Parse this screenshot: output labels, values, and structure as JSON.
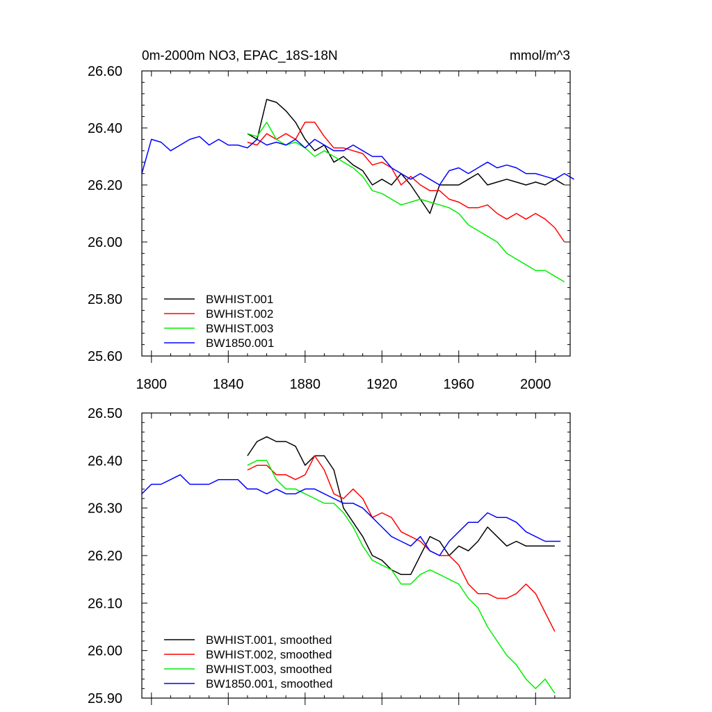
{
  "chart_data": [
    {
      "type": "line",
      "title": "0m-2000m NO3, EPAC_18S-18N",
      "units": "mmol/m^3",
      "xlim": [
        1795,
        2018
      ],
      "ylim": [
        25.6,
        26.6
      ],
      "xticks": [
        1800,
        1840,
        1880,
        1920,
        1960,
        2000
      ],
      "xtick_labels": [
        "1800",
        "1840",
        "1880",
        "1920",
        "1960",
        "2000"
      ],
      "yticks": [
        25.6,
        25.8,
        26.0,
        26.2,
        26.4,
        26.6
      ],
      "ytick_labels": [
        "25.60",
        "25.80",
        "26.00",
        "26.20",
        "26.40",
        "26.60"
      ],
      "legend_position": "lower-left",
      "series": [
        {
          "name": "BWHIST.001",
          "color": "#000000",
          "x_start": 1850,
          "x_step": 5,
          "values": [
            26.38,
            26.36,
            26.5,
            26.49,
            26.46,
            26.42,
            26.36,
            26.32,
            26.34,
            26.28,
            26.3,
            26.27,
            26.25,
            26.2,
            26.22,
            26.2,
            26.24,
            26.2,
            26.15,
            26.1,
            26.2,
            26.2,
            26.2,
            26.22,
            26.24,
            26.2,
            26.21,
            26.22,
            26.21,
            26.2,
            26.21,
            26.2,
            26.22,
            26.2
          ]
        },
        {
          "name": "BWHIST.002",
          "color": "#ff0000",
          "x_start": 1850,
          "x_step": 5,
          "values": [
            26.35,
            26.34,
            26.38,
            26.36,
            26.38,
            26.36,
            26.42,
            26.42,
            26.37,
            26.33,
            26.33,
            26.32,
            26.31,
            26.27,
            26.28,
            26.26,
            26.2,
            26.23,
            26.2,
            26.18,
            26.18,
            26.15,
            26.14,
            26.12,
            26.12,
            26.13,
            26.1,
            26.08,
            26.1,
            26.08,
            26.1,
            26.08,
            26.05,
            26.0
          ]
        },
        {
          "name": "BWHIST.003",
          "color": "#00ee00",
          "x_start": 1850,
          "x_step": 5,
          "values": [
            26.38,
            26.37,
            26.42,
            26.36,
            26.34,
            26.35,
            26.33,
            26.3,
            26.32,
            26.3,
            26.28,
            26.26,
            26.23,
            26.18,
            26.17,
            26.15,
            26.13,
            26.14,
            26.15,
            26.14,
            26.13,
            26.12,
            26.1,
            26.06,
            26.04,
            26.02,
            26.0,
            25.96,
            25.94,
            25.92,
            25.9,
            25.9,
            25.88,
            25.86
          ]
        },
        {
          "name": "BW1850.001",
          "color": "#0000ff",
          "x_start": 1795,
          "x_step": 5,
          "values": [
            26.24,
            26.36,
            26.35,
            26.32,
            26.34,
            26.36,
            26.37,
            26.34,
            26.36,
            26.34,
            26.34,
            26.33,
            26.36,
            26.34,
            26.35,
            26.34,
            26.36,
            26.33,
            26.36,
            26.34,
            26.32,
            26.32,
            26.34,
            26.32,
            26.3,
            26.3,
            26.26,
            26.24,
            26.22,
            26.24,
            26.22,
            26.2,
            26.25,
            26.26,
            26.24,
            26.26,
            26.28,
            26.26,
            26.27,
            26.26,
            26.24,
            26.24,
            26.23,
            26.22,
            26.24,
            26.22
          ]
        }
      ]
    },
    {
      "type": "line",
      "title": "",
      "xlim": [
        1795,
        2018
      ],
      "ylim": [
        25.9,
        26.5
      ],
      "xticks": [
        1800,
        1840,
        1880,
        1920,
        1960,
        2000
      ],
      "yticks": [
        25.9,
        26.0,
        26.1,
        26.2,
        26.3,
        26.4,
        26.5
      ],
      "ytick_labels": [
        "25.90",
        "26.00",
        "26.10",
        "26.20",
        "26.30",
        "26.40",
        "26.50"
      ],
      "legend_position": "lower-left",
      "series": [
        {
          "name": "BWHIST.001, smoothed",
          "color": "#000000",
          "x": [
            1850,
            1855,
            1860,
            1865,
            1870,
            1875,
            1880,
            1885,
            1890,
            1895,
            1900,
            1905,
            1910,
            1915,
            1920,
            1925,
            1930,
            1935,
            1940,
            1945,
            1950,
            1955,
            1960,
            1965,
            1970,
            1975,
            1980,
            1985,
            1990,
            1995,
            2000,
            2005,
            2010
          ],
          "values": [
            26.41,
            26.44,
            26.45,
            26.44,
            26.44,
            26.43,
            26.39,
            26.41,
            26.41,
            26.38,
            26.3,
            26.27,
            26.24,
            26.2,
            26.19,
            26.17,
            26.16,
            26.16,
            26.2,
            26.24,
            26.23,
            26.2,
            26.22,
            26.21,
            26.23,
            26.26,
            26.24,
            26.22,
            26.23,
            26.22,
            26.22,
            26.22,
            26.22
          ]
        },
        {
          "name": "BWHIST.002, smoothed",
          "color": "#ff0000",
          "x": [
            1850,
            1855,
            1860,
            1865,
            1870,
            1875,
            1880,
            1885,
            1890,
            1895,
            1900,
            1905,
            1910,
            1915,
            1920,
            1925,
            1930,
            1935,
            1940,
            1945,
            1950,
            1955,
            1960,
            1965,
            1970,
            1975,
            1980,
            1985,
            1990,
            1995,
            2000,
            2005,
            2010
          ],
          "values": [
            26.38,
            26.39,
            26.39,
            26.37,
            26.37,
            26.36,
            26.37,
            26.41,
            26.38,
            26.33,
            26.32,
            26.34,
            26.32,
            26.28,
            26.29,
            26.28,
            26.25,
            26.24,
            26.23,
            26.21,
            26.2,
            26.2,
            26.18,
            26.14,
            26.12,
            26.12,
            26.11,
            26.11,
            26.12,
            26.14,
            26.12,
            26.08,
            26.04
          ]
        },
        {
          "name": "BWHIST.003, smoothed",
          "color": "#00ee00",
          "x": [
            1850,
            1855,
            1860,
            1865,
            1870,
            1875,
            1880,
            1885,
            1890,
            1895,
            1900,
            1905,
            1910,
            1915,
            1920,
            1925,
            1930,
            1935,
            1940,
            1945,
            1950,
            1955,
            1960,
            1965,
            1970,
            1975,
            1980,
            1985,
            1990,
            1995,
            2000,
            2005,
            2010
          ],
          "values": [
            26.39,
            26.4,
            26.4,
            26.36,
            26.34,
            26.34,
            26.33,
            26.32,
            26.31,
            26.31,
            26.29,
            26.26,
            26.22,
            26.19,
            26.18,
            26.17,
            26.14,
            26.14,
            26.16,
            26.17,
            26.16,
            26.15,
            26.14,
            26.11,
            26.09,
            26.05,
            26.02,
            25.99,
            25.97,
            25.94,
            25.92,
            25.94,
            25.91
          ]
        },
        {
          "name": "BW1850.001, smoothed",
          "color": "#0000ff",
          "x": [
            1795,
            1800,
            1805,
            1810,
            1815,
            1820,
            1825,
            1830,
            1835,
            1840,
            1845,
            1850,
            1855,
            1860,
            1865,
            1870,
            1875,
            1880,
            1885,
            1890,
            1895,
            1900,
            1905,
            1910,
            1915,
            1920,
            1925,
            1930,
            1935,
            1940,
            1945,
            1950,
            1955,
            1960,
            1965,
            1970,
            1975,
            1980,
            1985,
            1990,
            1995,
            2000,
            2005,
            2010,
            2013
          ],
          "values": [
            26.33,
            26.35,
            26.35,
            26.36,
            26.37,
            26.35,
            26.35,
            26.35,
            26.36,
            26.36,
            26.36,
            26.34,
            26.34,
            26.33,
            26.34,
            26.33,
            26.33,
            26.34,
            26.34,
            26.33,
            26.32,
            26.31,
            26.31,
            26.3,
            26.28,
            26.26,
            26.24,
            26.23,
            26.22,
            26.24,
            26.21,
            26.2,
            26.23,
            26.25,
            26.27,
            26.27,
            26.29,
            26.28,
            26.28,
            26.27,
            26.25,
            26.24,
            26.23,
            26.23,
            26.23
          ]
        }
      ]
    }
  ]
}
